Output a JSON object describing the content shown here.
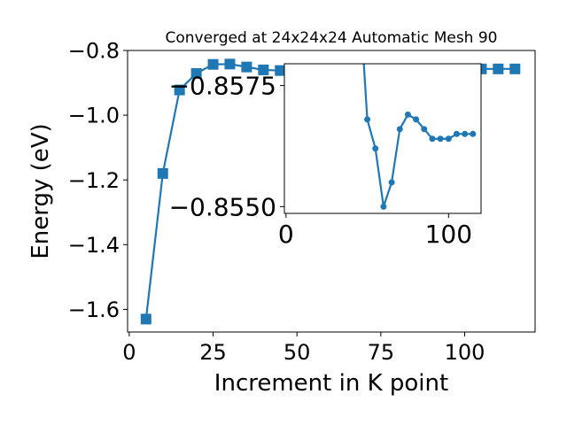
{
  "chart_data": [
    {
      "type": "line",
      "title": "Converged at 24x24x24 Automatic Mesh 90",
      "xlabel": "Increment in K point",
      "ylabel": "Energy (eV)",
      "xlim": [
        -0.5,
        121
      ],
      "ylim": [
        -1.67,
        -0.8
      ],
      "xticks": [
        0,
        25,
        50,
        75,
        100
      ],
      "yticks": [
        -1.6,
        -1.4,
        -1.2,
        -1.0,
        -0.8
      ],
      "ytick_labels": [
        "−1.6",
        "−1.4",
        "−1.2",
        "−1.0",
        "−0.8"
      ],
      "marker": "square",
      "color": "#1f77b4",
      "x": [
        5,
        10,
        15,
        20,
        25,
        30,
        35,
        40,
        45,
        50,
        55,
        60,
        65,
        70,
        75,
        80,
        85,
        90,
        95,
        100,
        105,
        110,
        115
      ],
      "y": [
        -1.63,
        -1.18,
        -0.922,
        -0.871,
        -0.843,
        -0.842,
        -0.851,
        -0.86,
        -0.862,
        -0.858,
        -0.857,
        -0.857,
        -0.857,
        -0.857,
        -0.857,
        -0.857,
        -0.857,
        -0.857,
        -0.857,
        -0.857,
        -0.857,
        -0.857,
        -0.857
      ]
    },
    {
      "type": "line",
      "title": "",
      "xlim": [
        -1,
        120
      ],
      "ylim": [
        -0.85486,
        -0.85795
      ],
      "xticks": [
        0,
        100
      ],
      "yticks": [
        -0.8575,
        -0.855
      ],
      "ytick_labels": [
        "−0.8575",
        "−0.8550"
      ],
      "marker": "circle",
      "color": "#1f77b4",
      "x": [
        45,
        50,
        55,
        60,
        65,
        70,
        75,
        80,
        85,
        90,
        95,
        100,
        105,
        110,
        115
      ],
      "y": [
        -0.8595,
        -0.8568,
        -0.8562,
        -0.855,
        -0.8555,
        -0.8566,
        -0.8569,
        -0.8568,
        -0.8566,
        -0.8564,
        -0.8564,
        -0.8564,
        -0.8565,
        -0.8565,
        -0.8565
      ]
    }
  ]
}
